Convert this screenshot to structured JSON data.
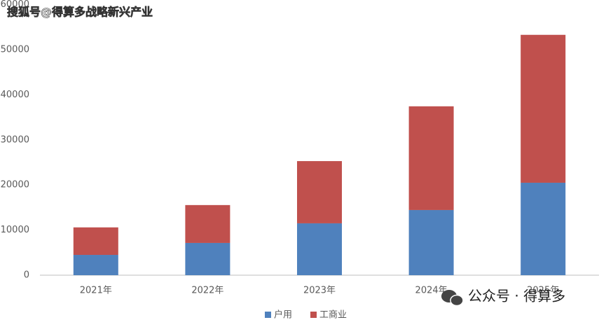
{
  "chart_data": {
    "type": "stacked_bar",
    "categories": [
      "2021年",
      "2022年",
      "2023年",
      "2024年",
      "2025年"
    ],
    "series": [
      {
        "name": "户用",
        "color": "#4f81bd",
        "values": [
          4500,
          7150,
          11500,
          14450,
          20500
        ]
      },
      {
        "name": "工商业",
        "color": "#c0504d",
        "values": [
          6100,
          8400,
          13800,
          23000,
          32800
        ]
      }
    ],
    "ylim": [
      0,
      60000
    ],
    "yticks": [
      0,
      10000,
      20000,
      30000,
      40000,
      50000,
      60000
    ],
    "grid": false,
    "legend": "bottom"
  },
  "watermarks": [
    "搜狐号@得算多战略新兴产业",
    "公众号 · 得算多"
  ]
}
